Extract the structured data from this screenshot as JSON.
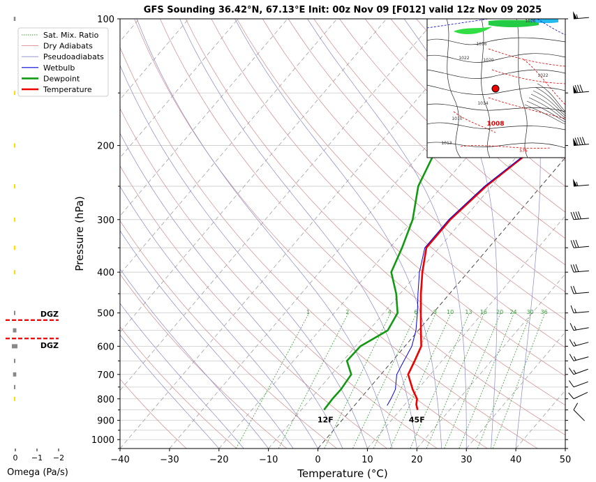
{
  "chart_data": {
    "type": "line",
    "title": "GFS Sounding 36.42°N, 67.13°E Init: 00z Nov 09 [F012] valid 12z Nov 09 2025",
    "xlabel": "Temperature (°C)",
    "ylabel": "Pressure (hPa)",
    "xlim": [
      -40,
      50
    ],
    "ylim": [
      1050,
      100
    ],
    "y_scale": "log",
    "x_ticks": [
      "−40",
      "−30",
      "−20",
      "−10",
      "0",
      "10",
      "20",
      "30",
      "40",
      "50"
    ],
    "y_ticks": [
      "100",
      "200",
      "300",
      "400",
      "500",
      "600",
      "700",
      "800",
      "900",
      "1000"
    ],
    "grid": true,
    "legend_position": "top-left",
    "legend": [
      "Sat. Mix. Ratio",
      "Dry Adiabats",
      "Pseudoadiabats",
      "Wetbulb",
      "Dewpoint",
      "Temperature"
    ],
    "series": [
      {
        "name": "Temperature",
        "color": "#ee0000",
        "p": [
          850,
          825,
          800,
          760,
          700,
          650,
          600,
          550,
          500,
          450,
          400,
          350,
          300,
          250,
          200,
          150,
          100
        ],
        "t": [
          13.5,
          12.3,
          11.5,
          9,
          5.5,
          4.5,
          3.3,
          0.5,
          -2.5,
          -5.8,
          -9.2,
          -12.6,
          -12.6,
          -11.1,
          -7.7,
          -7.9,
          -2.5
        ]
      },
      {
        "name": "Dewpoint",
        "color": "#119911",
        "p": [
          850,
          800,
          760,
          700,
          650,
          600,
          550,
          500,
          450,
          400,
          350,
          300,
          250,
          200,
          150,
          100
        ],
        "t": [
          -5.4,
          -5.6,
          -5.5,
          -6,
          -9.2,
          -9,
          -6.2,
          -7.2,
          -10.8,
          -15.5,
          -17.5,
          -20.2,
          -24.8,
          -27.8,
          -26.6,
          -20.2
        ]
      },
      {
        "name": "Wetbulb",
        "color": "#0000dd",
        "p": [
          830,
          800,
          760,
          700,
          650,
          600,
          550,
          500,
          450,
          400,
          350,
          300,
          250,
          200,
          150,
          100
        ],
        "t": [
          6.6,
          6.2,
          5.5,
          3.2,
          2.3,
          1.4,
          -0.5,
          -3.2,
          -6.4,
          -9.8,
          -12.9,
          -12.9,
          -11.4,
          -7.9,
          -8.0,
          -2.6
        ]
      }
    ],
    "mixing_ratio_labels": [
      "1",
      "2",
      "4",
      "6",
      "8",
      "10",
      "13",
      "16",
      "20",
      "24",
      "30",
      "36"
    ],
    "surface_labels": {
      "temperature": "45F",
      "dewpoint": "12F"
    },
    "omega": {
      "xlabel": "Omega (Pa/s)",
      "x_ticks": [
        "0",
        "−1",
        "−2"
      ],
      "dgz_label": "DGZ",
      "dgz_label_2": "DGZ",
      "bars": [
        {
          "p": 100,
          "w": 0.08,
          "color": "#888888"
        },
        {
          "p": 150,
          "w": 0.05,
          "color": "#ffdd00"
        },
        {
          "p": 200,
          "w": 0.05,
          "color": "#ffdd00"
        },
        {
          "p": 250,
          "w": 0.04,
          "color": "#ffdd00"
        },
        {
          "p": 300,
          "w": 0.04,
          "color": "#ffdd00"
        },
        {
          "p": 350,
          "w": 0.08,
          "color": "#ffdd00"
        },
        {
          "p": 400,
          "w": 0.04,
          "color": "#ffdd00"
        },
        {
          "p": 500,
          "w": 0.04,
          "color": "#888888"
        },
        {
          "p": 550,
          "w": 0.16,
          "color": "#888888"
        },
        {
          "p": 600,
          "w": 0.26,
          "color": "#888888"
        },
        {
          "p": 650,
          "w": 0.06,
          "color": "#888888"
        },
        {
          "p": 700,
          "w": 0.15,
          "color": "#888888"
        },
        {
          "p": 750,
          "w": 0.04,
          "color": "#888888"
        },
        {
          "p": 800,
          "w": 0.04,
          "color": "#ffdd00"
        }
      ],
      "dgz_pressures": [
        520,
        575
      ]
    },
    "wind_barbs": [
      {
        "p": 100,
        "dir": 265,
        "kt": 55
      },
      {
        "p": 150,
        "dir": 265,
        "kt": 80
      },
      {
        "p": 200,
        "dir": 265,
        "kt": 90
      },
      {
        "p": 250,
        "dir": 265,
        "kt": 55
      },
      {
        "p": 300,
        "dir": 265,
        "kt": 40
      },
      {
        "p": 350,
        "dir": 265,
        "kt": 30
      },
      {
        "p": 400,
        "dir": 265,
        "kt": 30
      },
      {
        "p": 450,
        "dir": 265,
        "kt": 20
      },
      {
        "p": 500,
        "dir": 265,
        "kt": 15
      },
      {
        "p": 550,
        "dir": 260,
        "kt": 15
      },
      {
        "p": 600,
        "dir": 255,
        "kt": 15
      },
      {
        "p": 650,
        "dir": 255,
        "kt": 15
      },
      {
        "p": 700,
        "dir": 250,
        "kt": 15
      },
      {
        "p": 750,
        "dir": 250,
        "kt": 10
      },
      {
        "p": 800,
        "dir": 245,
        "kt": 10
      },
      {
        "p": 850,
        "dir": 315,
        "kt": 10
      }
    ],
    "inset_map": {
      "isobar_labels": [
        "1026",
        "1020",
        "1022",
        "1016",
        "1014",
        "1010",
        "1008",
        "1022",
        "576",
        "1013"
      ],
      "location_marker": true
    }
  }
}
